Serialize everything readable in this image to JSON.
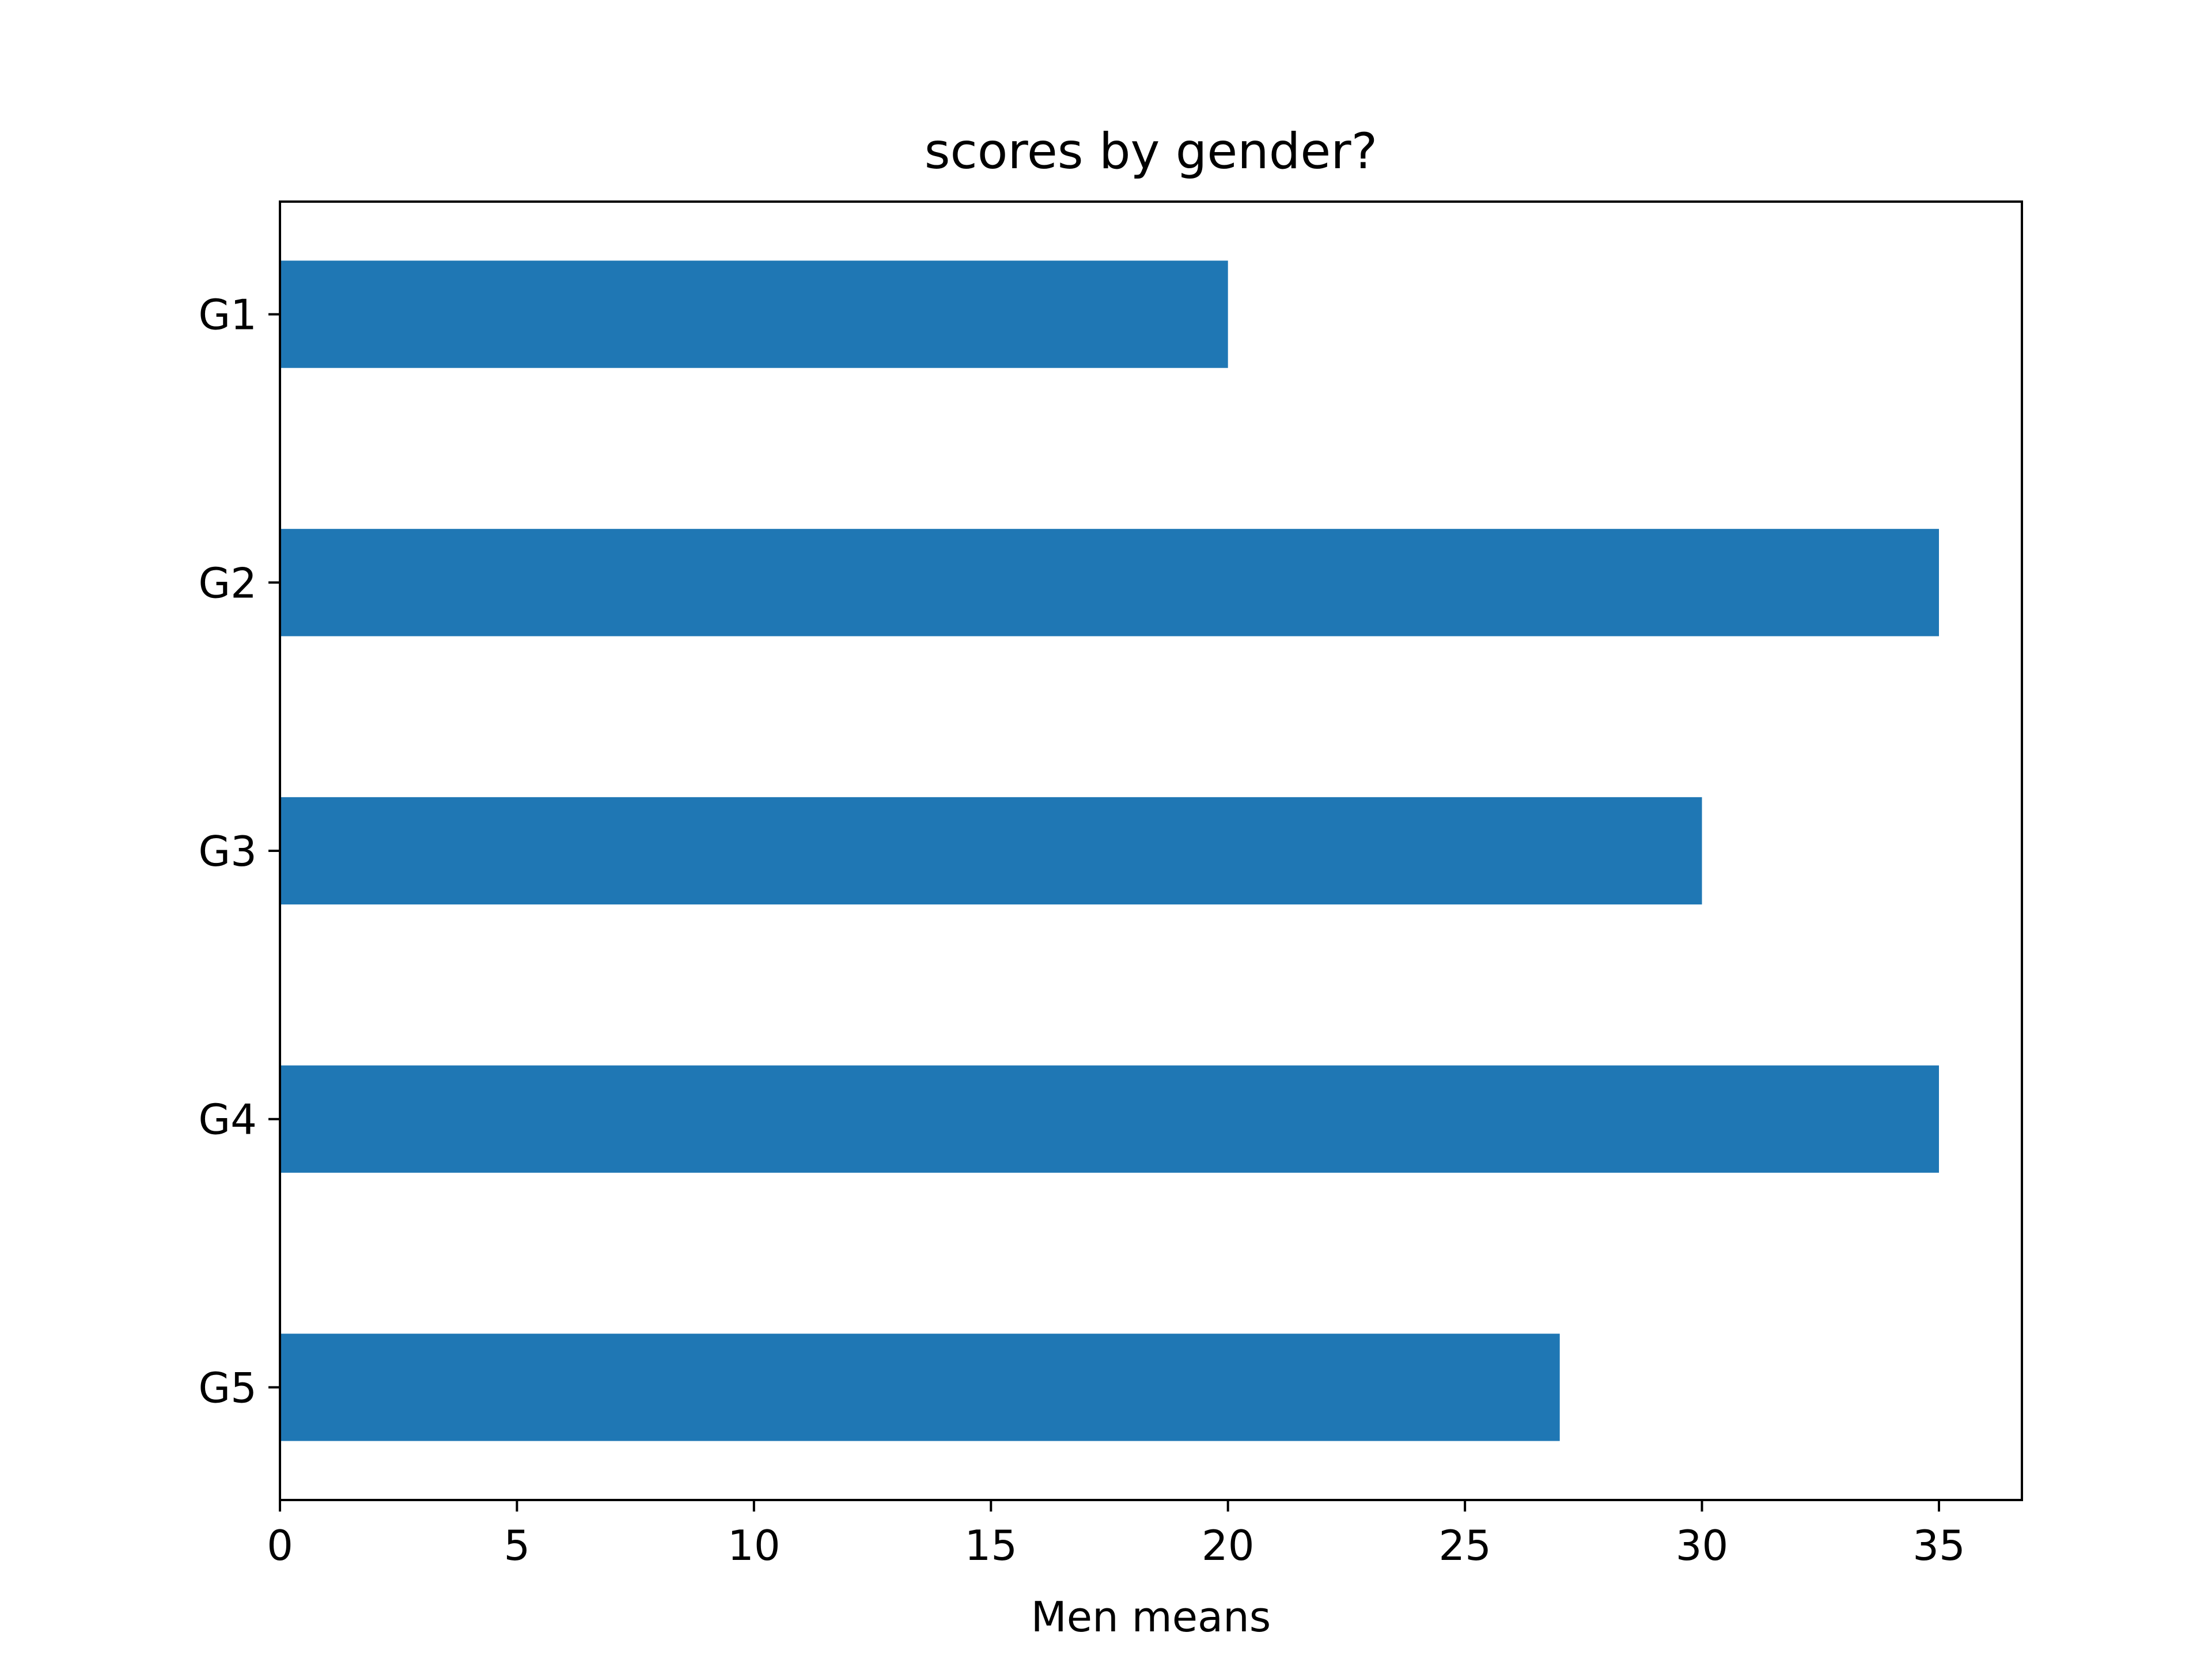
{
  "chart_data": {
    "type": "bar",
    "orientation": "horizontal",
    "title": "scores by gender?",
    "xlabel": "Men means",
    "ylabel": "",
    "categories": [
      "G1",
      "G2",
      "G3",
      "G4",
      "G5"
    ],
    "series": [
      {
        "values": [
          20,
          35,
          30,
          35,
          27
        ]
      }
    ],
    "xlim": [
      0,
      36.75
    ],
    "xticks": [
      "0",
      "5",
      "10",
      "15",
      "20",
      "25",
      "30",
      "35"
    ],
    "grid": false,
    "legend": "none",
    "colors": {
      "bar": "#1f77b4",
      "axes": "#000000",
      "background": "#ffffff"
    }
  }
}
